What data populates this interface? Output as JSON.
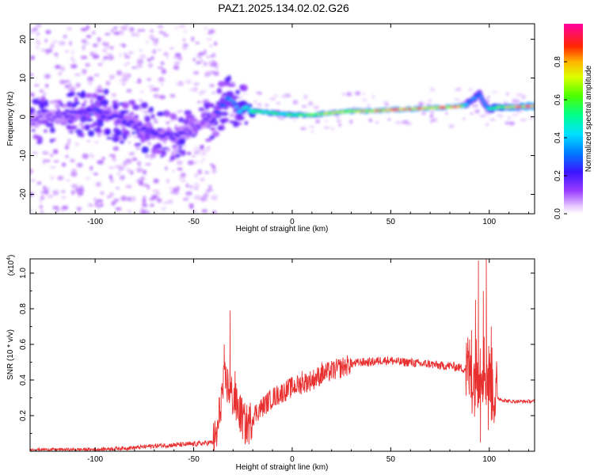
{
  "title": "PAZ1.2025.134.02.02.G26",
  "colors": {
    "snr_line": "#e83030",
    "axis": "#000000",
    "background": "#ffffff"
  },
  "chart_data": [
    {
      "type": "heatmap",
      "name": "spectrogram",
      "xlabel": "Height of straight line (km)",
      "ylabel": "Frequency (Hz)",
      "xlim": [
        -133,
        123
      ],
      "ylim": [
        -25,
        24
      ],
      "xticks": [
        -100,
        -50,
        0,
        50,
        100
      ],
      "yticks": [
        -20,
        -10,
        0,
        10,
        20
      ],
      "colorbar": {
        "label": "Normalized spectral amplitude",
        "range": [
          0,
          1
        ],
        "ticks": [
          0.0,
          0.2,
          0.4,
          0.6,
          0.8
        ]
      },
      "ridge": {
        "x": [
          -130,
          -120,
          -110,
          -100,
          -90,
          -80,
          -70,
          -60,
          -50,
          -45,
          -40,
          -35,
          -32,
          -30,
          -27,
          -25,
          -20,
          -10,
          0,
          10,
          20,
          30,
          40,
          50,
          60,
          70,
          80,
          85,
          88,
          90,
          93,
          95,
          98,
          100,
          105,
          110,
          115,
          120,
          123
        ],
        "freq": [
          -1,
          0,
          0.5,
          1.5,
          0,
          -2,
          -4,
          -5,
          -3,
          -2,
          0,
          3,
          5,
          4,
          2,
          2.5,
          1.5,
          1,
          0.5,
          0.5,
          1,
          1.5,
          1.5,
          1.8,
          2,
          2.3,
          2.5,
          2.7,
          3,
          4,
          5,
          6,
          3,
          2,
          2.5,
          2.5,
          2.6,
          2.7,
          2.8
        ],
        "amplitude": [
          0.15,
          0.15,
          0.2,
          0.25,
          0.2,
          0.2,
          0.2,
          0.2,
          0.15,
          0.15,
          0.2,
          0.3,
          0.35,
          0.3,
          0.4,
          0.45,
          0.5,
          0.5,
          0.55,
          0.6,
          0.65,
          0.7,
          0.75,
          0.8,
          0.8,
          0.75,
          0.8,
          0.9,
          0.4,
          0.3,
          0.35,
          0.3,
          0.3,
          0.45,
          0.6,
          0.7,
          0.75,
          0.8,
          0.8
        ]
      }
    },
    {
      "type": "line",
      "name": "snr",
      "xlabel": "Height of straight line (km)",
      "ylabel": "SNR (10 * v/v)",
      "y_multiplier_label": "(x10",
      "y_multiplier_exp": "4",
      "y_multiplier_close": ")",
      "xlim": [
        -133,
        123
      ],
      "ylim": [
        0,
        1.08
      ],
      "xticks": [
        -100,
        -50,
        0,
        50,
        100
      ],
      "yticks": [
        0.2,
        0.4,
        0.6,
        0.8,
        1.0
      ],
      "x": [
        -133,
        -120,
        -110,
        -100,
        -90,
        -80,
        -70,
        -60,
        -50,
        -45,
        -40,
        -38,
        -36,
        -34,
        -32,
        -30,
        -28,
        -26,
        -24,
        -22,
        -20,
        -15,
        -10,
        -5,
        0,
        5,
        10,
        15,
        20,
        25,
        30,
        35,
        40,
        45,
        50,
        55,
        60,
        65,
        70,
        75,
        80,
        85,
        88,
        90,
        92,
        94,
        96,
        98,
        100,
        102,
        104,
        106,
        110,
        115,
        120,
        123
      ],
      "values": [
        0.01,
        0.01,
        0.01,
        0.01,
        0.015,
        0.02,
        0.03,
        0.035,
        0.04,
        0.045,
        0.05,
        0.1,
        0.3,
        0.4,
        0.35,
        0.3,
        0.25,
        0.2,
        0.15,
        0.15,
        0.2,
        0.25,
        0.3,
        0.33,
        0.36,
        0.38,
        0.4,
        0.43,
        0.45,
        0.47,
        0.49,
        0.5,
        0.5,
        0.51,
        0.51,
        0.5,
        0.5,
        0.49,
        0.49,
        0.48,
        0.48,
        0.47,
        0.46,
        0.45,
        0.4,
        0.45,
        0.5,
        0.45,
        0.4,
        0.35,
        0.3,
        0.29,
        0.28,
        0.28,
        0.28,
        0.28
      ],
      "spikes": [
        {
          "x": -34.5,
          "value": 0.6
        },
        {
          "x": -31.5,
          "value": 0.79
        },
        {
          "x": -29,
          "value": 0.45
        },
        {
          "x": -26,
          "value": 0.3
        },
        {
          "x": 5,
          "value": 0.45
        },
        {
          "x": 15,
          "value": 0.5
        },
        {
          "x": 91,
          "value": 0.68
        },
        {
          "x": 93,
          "value": 0.85
        },
        {
          "x": 94.5,
          "value": 1.07
        },
        {
          "x": 95.5,
          "value": 0.05
        },
        {
          "x": 97,
          "value": 0.9
        },
        {
          "x": 98.5,
          "value": 1.08
        },
        {
          "x": 99.5,
          "value": 0.12
        },
        {
          "x": 101,
          "value": 0.7
        },
        {
          "x": 103,
          "value": 0.2
        }
      ]
    }
  ]
}
